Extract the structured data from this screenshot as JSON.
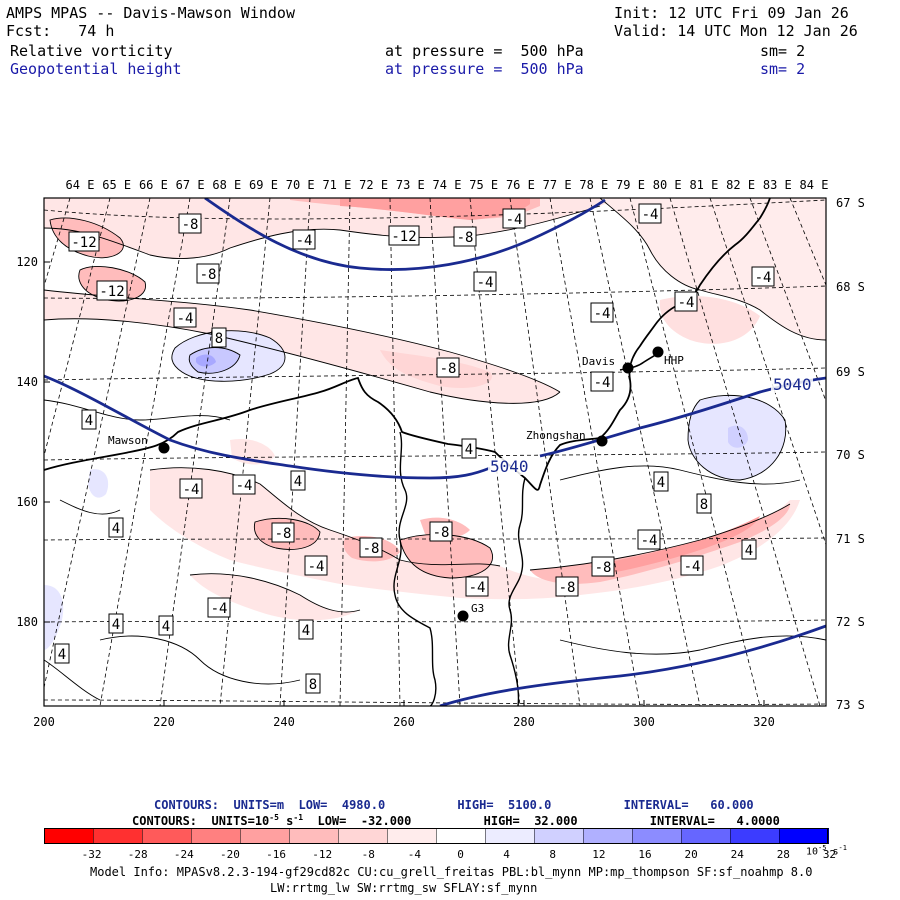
{
  "header": {
    "title": "AMPS MPAS -- Davis-Mawson Window",
    "init": "Init: 12 UTC Fri 09 Jan 26",
    "fcst": "Fcst:   74 h",
    "valid": "Valid: 14 UTC Mon 12 Jan 26",
    "field1": "Relative vorticity",
    "field1_level": "at pressure =  500 hPa",
    "field1_sm": "sm= 2",
    "field2": "Geopotential height",
    "field2_level": "at pressure =  500 hPa",
    "field2_sm": "sm= 2"
  },
  "map": {
    "lon_labels": [
      "64 E",
      "65 E",
      "66 E",
      "67 E",
      "68 E",
      "69 E",
      "70 E",
      "71 E",
      "72 E",
      "73 E",
      "74 E",
      "75 E",
      "76 E",
      "77 E",
      "78 E",
      "79 E",
      "80 E",
      "81 E",
      "82 E",
      "83 E",
      "84 E"
    ],
    "lat_labels": [
      "67 S",
      "68 S",
      "69 S",
      "70 S",
      "71 S",
      "72 S",
      "73 S"
    ],
    "y_ticks": [
      "120",
      "140",
      "160",
      "180"
    ],
    "x_ticks": [
      "200",
      "220",
      "240",
      "260",
      "280",
      "300",
      "320"
    ],
    "stations": [
      {
        "name": "Mawson"
      },
      {
        "name": "Davis"
      },
      {
        "name": "HHP"
      },
      {
        "name": "Zhongshan"
      },
      {
        "name": "G3"
      }
    ],
    "height_labels": [
      "5040",
      "5040"
    ],
    "vort_labels": [
      "-12",
      "-12",
      "-12",
      "-8",
      "-8",
      "-8",
      "-8",
      "-8",
      "-8",
      "-8",
      "-8",
      "-8",
      "-4",
      "-4",
      "-4",
      "-4",
      "-4",
      "-4",
      "-4",
      "-4",
      "-4",
      "-4",
      "-4",
      "-4",
      "-4",
      "-4",
      "-4",
      "-4",
      "4",
      "4",
      "4",
      "4",
      "4",
      "4",
      "4",
      "4",
      "4",
      "8",
      "8",
      "4",
      "8"
    ]
  },
  "legend": {
    "line1_contours": "CONTOURS:  UNITS=m  LOW=  4980.0          HIGH=  5100.0          INTERVAL=   60.000",
    "line2_contours": "CONTOURS:  UNITS=10",
    "line2_exp": "-5",
    "line2_s": " s",
    "line2_sexp": "-1",
    "line2_rest": "  LOW=  -32.000          HIGH=  32.000          INTERVAL=   4.0000",
    "colorbar_ticks": [
      "-32",
      "-28",
      "-24",
      "-20",
      "-16",
      "-12",
      "-8",
      "-4",
      "0",
      "4",
      "8",
      "12",
      "16",
      "20",
      "24",
      "28",
      "32"
    ],
    "colorbar_units": "10",
    "colorbar_units_exp": "-5",
    "colorbar_units_s": " s",
    "colorbar_units_sexp": "-1",
    "colors": [
      "#ff0000",
      "#ff3030",
      "#ff5a5a",
      "#ff8080",
      "#ffa0a0",
      "#ffbcbc",
      "#ffd6d6",
      "#ffecec",
      "#ffffff",
      "#ffffff",
      "#ececff",
      "#d0d0ff",
      "#b0b0ff",
      "#8c8cff",
      "#6666ff",
      "#3c3cff",
      "#0000ff"
    ]
  },
  "model_info": {
    "line1": "Model Info: MPASv8.2.3-194-gf29cd82c CU:cu_grell_freitas PBL:bl_mynn MP:mp_thompson SF:sf_noahmp 8.0",
    "line2": "LW:rrtmg_lw SW:rrtmg_sw SFLAY:sf_mynn"
  }
}
